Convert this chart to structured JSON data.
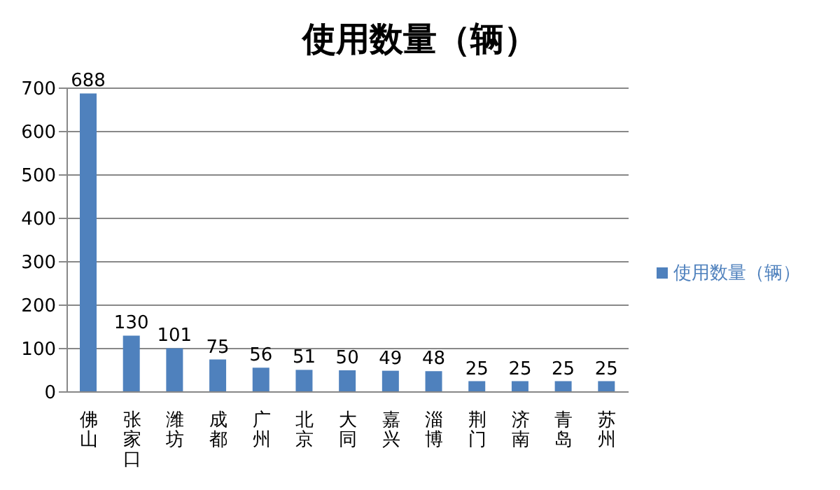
{
  "chart_data": {
    "type": "bar",
    "title": "使用数量（辆）",
    "categories": [
      "佛山",
      "张家口",
      "潍坊",
      "成都",
      "广州",
      "北京",
      "大同",
      "嘉兴",
      "淄博",
      "荆门",
      "济南",
      "青岛",
      "苏州"
    ],
    "series": [
      {
        "name": "使用数量（辆）",
        "color": "#4f81bd",
        "values": [
          688,
          130,
          101,
          75,
          56,
          51,
          50,
          49,
          48,
          25,
          25,
          25,
          25
        ]
      }
    ],
    "ylim": [
      0,
      700
    ],
    "yticks": [
      0,
      100,
      200,
      300,
      400,
      500,
      600,
      700
    ],
    "grid": "y",
    "legend": "right",
    "data_labels": true
  }
}
